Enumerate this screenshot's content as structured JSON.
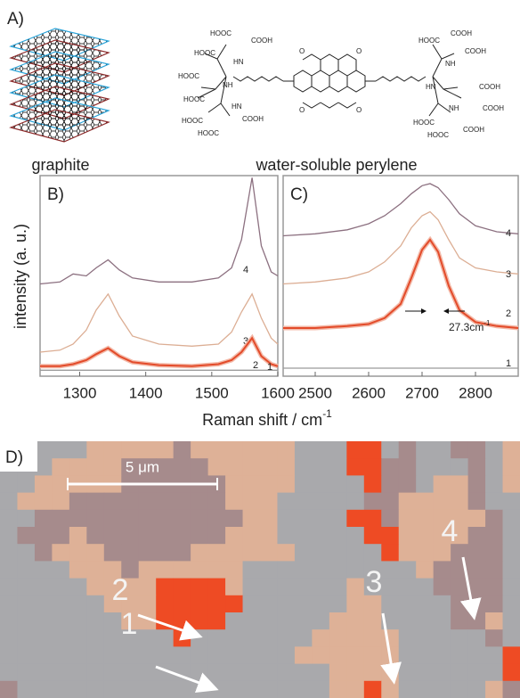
{
  "panels": {
    "a": {
      "label": "A)",
      "captions": [
        "graphite",
        "water-soluble perylene"
      ],
      "perylene_labels": [
        "HOOC",
        "COOH",
        "HOOC",
        "HN",
        "HOOC",
        "NH",
        "HOOC",
        "HN",
        "HOOC",
        "COOH",
        "HOOC",
        "COOH",
        "HOOC",
        "COOH",
        "NH",
        "COOH",
        "HN",
        "COOH",
        "NH",
        "HOOC",
        "COOH",
        "HOOC",
        "O",
        "O",
        "O",
        "O"
      ]
    },
    "d": {
      "label": "D)",
      "scale_bar": "5 μm",
      "markers": [
        "1",
        "2",
        "3",
        "4"
      ]
    }
  },
  "axes": {
    "y_label": "intensity (a. u.)",
    "x_label": "Raman shift / cm",
    "x_label_sup": "-1"
  },
  "chart_data": [
    {
      "type": "line",
      "label": "B)",
      "x": [
        1240,
        1270,
        1290,
        1310,
        1325,
        1343,
        1360,
        1380,
        1420,
        1470,
        1510,
        1530,
        1545,
        1561,
        1575,
        1590,
        1600
      ],
      "series": [
        {
          "name": "4",
          "color": "#8c7080",
          "values": [
            4.6,
            4.7,
            5.1,
            5.0,
            5.4,
            5.8,
            5.3,
            4.9,
            4.7,
            4.7,
            4.9,
            5.4,
            6.8,
            9.9,
            6.5,
            5.2,
            5.0
          ]
        },
        {
          "name": "3",
          "color": "#dcae94",
          "values": [
            1.2,
            1.3,
            1.6,
            2.3,
            3.3,
            4.1,
            3.0,
            2.0,
            1.6,
            1.5,
            1.6,
            2.2,
            3.2,
            4.1,
            2.9,
            1.9,
            1.6
          ]
        },
        {
          "name": "2",
          "color": "#e34b2a",
          "values": [
            0.5,
            0.5,
            0.6,
            0.8,
            1.1,
            1.4,
            1.0,
            0.7,
            0.55,
            0.5,
            0.6,
            0.8,
            1.2,
            1.9,
            1.0,
            0.6,
            0.5
          ]
        },
        {
          "name": "1",
          "color": "#9b9b9b",
          "values": [
            0.3,
            0.3,
            0.3,
            0.3,
            0.3,
            0.3,
            0.3,
            0.3,
            0.3,
            0.3,
            0.3,
            0.3,
            0.3,
            0.3,
            0.3,
            0.3,
            0.3
          ]
        }
      ],
      "xlim": [
        1240,
        1600
      ],
      "xticks": [
        1300,
        1400,
        1500,
        1600
      ],
      "ylim": [
        0,
        10
      ]
    },
    {
      "type": "line",
      "label": "C)",
      "x": [
        2440,
        2500,
        2560,
        2600,
        2630,
        2660,
        2680,
        2700,
        2715,
        2730,
        2750,
        2770,
        2800,
        2840,
        2880
      ],
      "series": [
        {
          "name": "4",
          "color": "#8c7080",
          "values": [
            7.0,
            7.1,
            7.3,
            7.6,
            8.0,
            8.6,
            9.1,
            9.5,
            9.6,
            9.4,
            8.8,
            8.1,
            7.5,
            7.2,
            7.1
          ]
        },
        {
          "name": "3",
          "color": "#dcae94",
          "values": [
            4.6,
            4.7,
            4.9,
            5.2,
            5.7,
            6.5,
            7.4,
            8.0,
            8.2,
            7.8,
            6.8,
            5.9,
            5.4,
            5.2,
            5.1
          ]
        },
        {
          "name": "2",
          "color": "#e34b2a",
          "values": [
            2.4,
            2.4,
            2.5,
            2.6,
            2.9,
            3.6,
            4.9,
            6.3,
            6.8,
            6.2,
            4.5,
            3.3,
            2.7,
            2.5,
            2.4
          ]
        },
        {
          "name": "1",
          "color": "#9b9b9b",
          "values": [
            0.4,
            0.4,
            0.4,
            0.4,
            0.4,
            0.4,
            0.4,
            0.4,
            0.4,
            0.4,
            0.4,
            0.4,
            0.4,
            0.4,
            0.4
          ]
        }
      ],
      "xlim": [
        2440,
        2880
      ],
      "xticks": [
        2500,
        2600,
        2700,
        2800
      ],
      "ylim": [
        0,
        10
      ],
      "annotation": {
        "text": "27.3cm",
        "sup": "-1"
      }
    }
  ]
}
